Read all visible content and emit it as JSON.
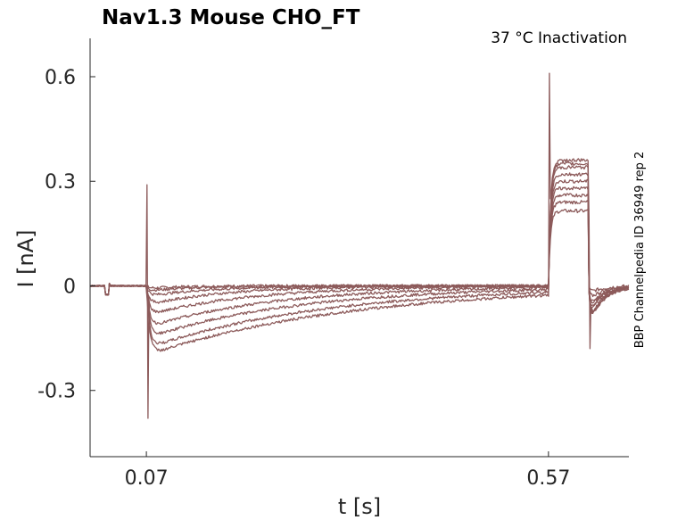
{
  "chart_data": {
    "type": "line",
    "title": "Nav1.3  Mouse  CHO_FT",
    "annotation": "37 °C  Inactivation",
    "side_label": "BBP Channelpedia ID 36949 rep 2",
    "xlabel": "t [s]",
    "ylabel": "I [nA]",
    "xlim": [
      0.0,
      0.67
    ],
    "ylim": [
      -0.49,
      0.71
    ],
    "xticks": [
      0.07,
      0.57
    ],
    "xtick_labels": [
      "0.07",
      "0.57"
    ],
    "yticks": [
      0.6,
      0.3,
      0,
      -0.3
    ],
    "ytick_labels": [
      "0.6",
      "0.3",
      "0",
      "-0.3"
    ],
    "grid": false,
    "color": "#8c5a5a",
    "protocol": {
      "step1_time": 0.07,
      "step2_time": 0.57,
      "step3_time": 0.62,
      "spike1_peak": 0.29,
      "spike1_min": -0.38,
      "spike2_peak": 0.61,
      "spike3_min": -0.18
    },
    "series": [
      {
        "inact_amp": -0.008,
        "tau": 0.04,
        "prepulse_level": 0.215,
        "tail_min": -0.02
      },
      {
        "inact_amp": -0.015,
        "tau": 0.06,
        "prepulse_level": 0.24,
        "tail_min": -0.04
      },
      {
        "inact_amp": -0.03,
        "tau": 0.08,
        "prepulse_level": 0.26,
        "tail_min": -0.06
      },
      {
        "inact_amp": -0.055,
        "tau": 0.1,
        "prepulse_level": 0.28,
        "tail_min": -0.07
      },
      {
        "inact_amp": -0.085,
        "tau": 0.13,
        "prepulse_level": 0.3,
        "tail_min": -0.08
      },
      {
        "inact_amp": -0.12,
        "tau": 0.16,
        "prepulse_level": 0.32,
        "tail_min": -0.09
      },
      {
        "inact_amp": -0.15,
        "tau": 0.19,
        "prepulse_level": 0.34,
        "tail_min": -0.1
      },
      {
        "inact_amp": -0.18,
        "tau": 0.22,
        "prepulse_level": 0.35,
        "tail_min": -0.11
      },
      {
        "inact_amp": -0.2,
        "tau": 0.25,
        "prepulse_level": 0.36,
        "tail_min": -0.11
      }
    ]
  }
}
